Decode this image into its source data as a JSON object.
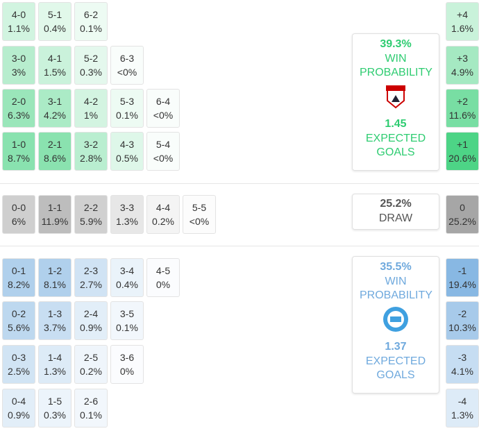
{
  "home": {
    "color": "#2ecc71",
    "rows": [
      [
        {
          "score": "4-0",
          "prob": "1.1%"
        },
        {
          "score": "5-1",
          "prob": "0.4%"
        },
        {
          "score": "6-2",
          "prob": "0.1%"
        }
      ],
      [
        {
          "score": "3-0",
          "prob": "3%"
        },
        {
          "score": "4-1",
          "prob": "1.5%"
        },
        {
          "score": "5-2",
          "prob": "0.3%"
        },
        {
          "score": "6-3",
          "prob": "<0%"
        }
      ],
      [
        {
          "score": "2-0",
          "prob": "6.3%"
        },
        {
          "score": "3-1",
          "prob": "4.2%"
        },
        {
          "score": "4-2",
          "prob": "1%"
        },
        {
          "score": "5-3",
          "prob": "0.1%"
        },
        {
          "score": "6-4",
          "prob": "<0%"
        }
      ],
      [
        {
          "score": "1-0",
          "prob": "8.7%"
        },
        {
          "score": "2-1",
          "prob": "8.6%"
        },
        {
          "score": "3-2",
          "prob": "2.8%"
        },
        {
          "score": "4-3",
          "prob": "0.5%"
        },
        {
          "score": "5-4",
          "prob": "<0%"
        }
      ]
    ],
    "margins": [
      {
        "label": "+4",
        "prob": "1.6%"
      },
      {
        "label": "+3",
        "prob": "4.9%"
      },
      {
        "label": "+2",
        "prob": "11.6%"
      },
      {
        "label": "+1",
        "prob": "20.6%"
      }
    ],
    "summary": {
      "win_pct": "39.3%",
      "win_label": "WIN PROBABILITY",
      "xg": "1.45",
      "xg_label": "EXPECTED GOALS"
    }
  },
  "draw": {
    "color": "#9a9a9a",
    "rows": [
      [
        {
          "score": "0-0",
          "prob": "6%"
        },
        {
          "score": "1-1",
          "prob": "11.9%"
        },
        {
          "score": "2-2",
          "prob": "5.9%"
        },
        {
          "score": "3-3",
          "prob": "1.3%"
        },
        {
          "score": "4-4",
          "prob": "0.2%"
        },
        {
          "score": "5-5",
          "prob": "<0%"
        }
      ]
    ],
    "margins": [
      {
        "label": "0",
        "prob": "25.2%"
      }
    ],
    "summary": {
      "pct": "25.2%",
      "label": "DRAW"
    }
  },
  "away": {
    "color": "#6fa9dd",
    "rows": [
      [
        {
          "score": "0-1",
          "prob": "8.2%"
        },
        {
          "score": "1-2",
          "prob": "8.1%"
        },
        {
          "score": "2-3",
          "prob": "2.7%"
        },
        {
          "score": "3-4",
          "prob": "0.4%"
        },
        {
          "score": "4-5",
          "prob": "0%"
        }
      ],
      [
        {
          "score": "0-2",
          "prob": "5.6%"
        },
        {
          "score": "1-3",
          "prob": "3.7%"
        },
        {
          "score": "2-4",
          "prob": "0.9%"
        },
        {
          "score": "3-5",
          "prob": "0.1%"
        }
      ],
      [
        {
          "score": "0-3",
          "prob": "2.5%"
        },
        {
          "score": "1-4",
          "prob": "1.3%"
        },
        {
          "score": "2-5",
          "prob": "0.2%"
        },
        {
          "score": "3-6",
          "prob": "0%"
        }
      ],
      [
        {
          "score": "0-4",
          "prob": "0.9%"
        },
        {
          "score": "1-5",
          "prob": "0.3%"
        },
        {
          "score": "2-6",
          "prob": "0.1%"
        }
      ]
    ],
    "margins": [
      {
        "label": "-1",
        "prob": "19.4%"
      },
      {
        "label": "-2",
        "prob": "10.3%"
      },
      {
        "label": "-3",
        "prob": "4.1%"
      },
      {
        "label": "-4",
        "prob": "1.3%"
      }
    ],
    "summary": {
      "win_pct": "35.5%",
      "win_label": "WIN PROBABILITY",
      "xg": "1.37",
      "xg_label": "EXPECTED GOALS"
    }
  }
}
